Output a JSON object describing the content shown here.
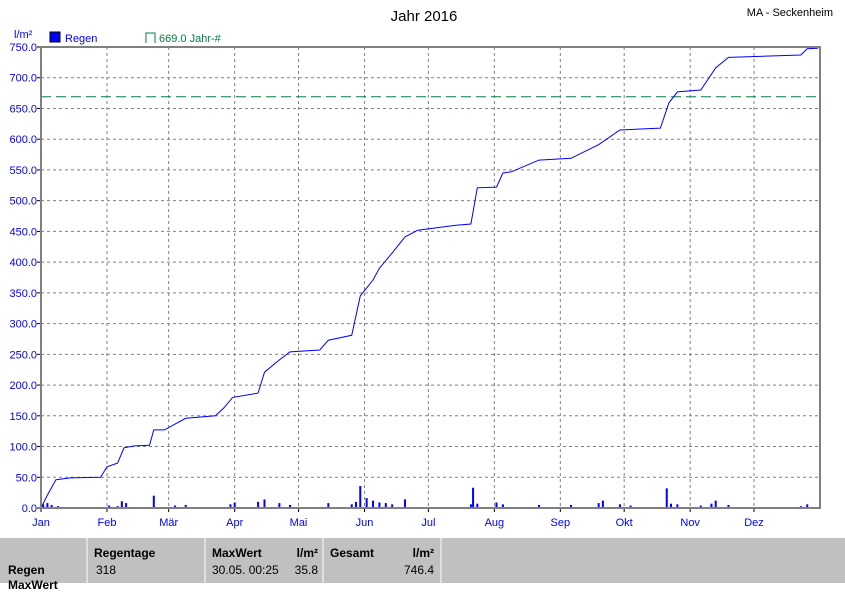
{
  "chart_data": {
    "type": "line",
    "title": "Jahr 2016",
    "station": "MA - Seckenheim",
    "ylabel": "l/m²",
    "ylim": [
      0,
      750
    ],
    "yticks": [
      "0.0",
      "50.0",
      "100.0",
      "150.0",
      "200.0",
      "250.0",
      "300.0",
      "350.0",
      "400.0",
      "450.0",
      "500.0",
      "550.0",
      "600.0",
      "650.0",
      "700.0",
      "750.0"
    ],
    "xticks": [
      "Jan",
      "Feb",
      "Mär",
      "Apr",
      "Mai",
      "Jun",
      "Jul",
      "Aug",
      "Sep",
      "Okt",
      "Nov",
      "Dez"
    ],
    "grid": true,
    "legend": [
      {
        "label": "Regen",
        "color": "#0000ff"
      },
      {
        "label": "669.0 Jahr-#",
        "color": "#008040"
      }
    ],
    "reference_line": {
      "value": 669.0,
      "color": "#008040",
      "style": "dashed"
    },
    "series": [
      {
        "name": "Regen",
        "color": "#0000ff",
        "cumulative": [
          [
            "2016-01-01",
            0
          ],
          [
            "2016-01-04",
            21
          ],
          [
            "2016-01-08",
            46
          ],
          [
            "2016-01-15",
            49
          ],
          [
            "2016-01-29",
            50
          ],
          [
            "2016-02-01",
            67
          ],
          [
            "2016-02-06",
            73
          ],
          [
            "2016-02-09",
            98
          ],
          [
            "2016-02-14",
            101
          ],
          [
            "2016-02-21",
            102
          ],
          [
            "2016-02-23",
            127
          ],
          [
            "2016-02-28",
            127
          ],
          [
            "2016-03-09",
            146
          ],
          [
            "2016-03-23",
            150
          ],
          [
            "2016-03-27",
            163
          ],
          [
            "2016-03-31",
            180
          ],
          [
            "2016-04-12",
            187
          ],
          [
            "2016-04-15",
            221
          ],
          [
            "2016-04-22",
            241
          ],
          [
            "2016-04-27",
            254
          ],
          [
            "2016-05-11",
            257
          ],
          [
            "2016-05-15",
            273
          ],
          [
            "2016-05-26",
            281
          ],
          [
            "2016-05-30",
            345
          ],
          [
            "2016-06-05",
            371
          ],
          [
            "2016-06-08",
            390
          ],
          [
            "2016-06-14",
            415
          ],
          [
            "2016-06-20",
            441
          ],
          [
            "2016-06-26",
            452
          ],
          [
            "2016-07-14",
            460
          ],
          [
            "2016-07-21",
            462
          ],
          [
            "2016-07-24",
            521
          ],
          [
            "2016-08-02",
            522
          ],
          [
            "2016-08-05",
            545
          ],
          [
            "2016-08-09",
            547
          ],
          [
            "2016-08-22",
            566
          ],
          [
            "2016-09-06",
            569
          ],
          [
            "2016-09-19",
            591
          ],
          [
            "2016-09-29",
            615
          ],
          [
            "2016-10-18",
            618
          ],
          [
            "2016-10-22",
            659
          ],
          [
            "2016-10-26",
            677
          ],
          [
            "2016-11-06",
            680
          ],
          [
            "2016-11-13",
            716
          ],
          [
            "2016-11-19",
            733
          ],
          [
            "2016-12-23",
            737
          ],
          [
            "2016-12-26",
            747
          ],
          [
            "2016-12-31",
            748
          ]
        ],
        "daily": [
          [
            "2016-01-02",
            6
          ],
          [
            "2016-01-04",
            8
          ],
          [
            "2016-01-06",
            5
          ],
          [
            "2016-01-09",
            3
          ],
          [
            "2016-02-02",
            4
          ],
          [
            "2016-02-06",
            3
          ],
          [
            "2016-02-08",
            11
          ],
          [
            "2016-02-10",
            8
          ],
          [
            "2016-02-23",
            20
          ],
          [
            "2016-03-04",
            4
          ],
          [
            "2016-03-09",
            5
          ],
          [
            "2016-03-30",
            6
          ],
          [
            "2016-04-01",
            9
          ],
          [
            "2016-04-12",
            10
          ],
          [
            "2016-04-15",
            14
          ],
          [
            "2016-04-22",
            8
          ],
          [
            "2016-04-27",
            5
          ],
          [
            "2016-05-15",
            8
          ],
          [
            "2016-05-26",
            6
          ],
          [
            "2016-05-28",
            10
          ],
          [
            "2016-05-30",
            35.8
          ],
          [
            "2016-06-02",
            16
          ],
          [
            "2016-06-05",
            12
          ],
          [
            "2016-06-08",
            9
          ],
          [
            "2016-06-11",
            8
          ],
          [
            "2016-06-14",
            6
          ],
          [
            "2016-06-20",
            14
          ],
          [
            "2016-07-21",
            6
          ],
          [
            "2016-07-22",
            33
          ],
          [
            "2016-07-24",
            7
          ],
          [
            "2016-08-02",
            9
          ],
          [
            "2016-08-05",
            6
          ],
          [
            "2016-08-22",
            5
          ],
          [
            "2016-09-06",
            5
          ],
          [
            "2016-09-19",
            8
          ],
          [
            "2016-09-21",
            12
          ],
          [
            "2016-09-29",
            6
          ],
          [
            "2016-10-04",
            4
          ],
          [
            "2016-10-21",
            32
          ],
          [
            "2016-10-23",
            7
          ],
          [
            "2016-10-26",
            6
          ],
          [
            "2016-11-06",
            4
          ],
          [
            "2016-11-11",
            7
          ],
          [
            "2016-11-13",
            12
          ],
          [
            "2016-11-19",
            5
          ],
          [
            "2016-12-23",
            3
          ],
          [
            "2016-12-26",
            6
          ]
        ]
      }
    ]
  },
  "footer": {
    "row_label": "Regen",
    "row_label_2": "MaxWert",
    "regentage_label": "Regentage",
    "regentage_value": "318",
    "maxwert_label": "MaxWert",
    "unit1": "l/m²",
    "maxwert_date": "30.05.  00:25",
    "maxwert_value": "35.8",
    "gesamt_label": "Gesamt",
    "unit2": "l/m²",
    "gesamt_value": "746.4"
  }
}
